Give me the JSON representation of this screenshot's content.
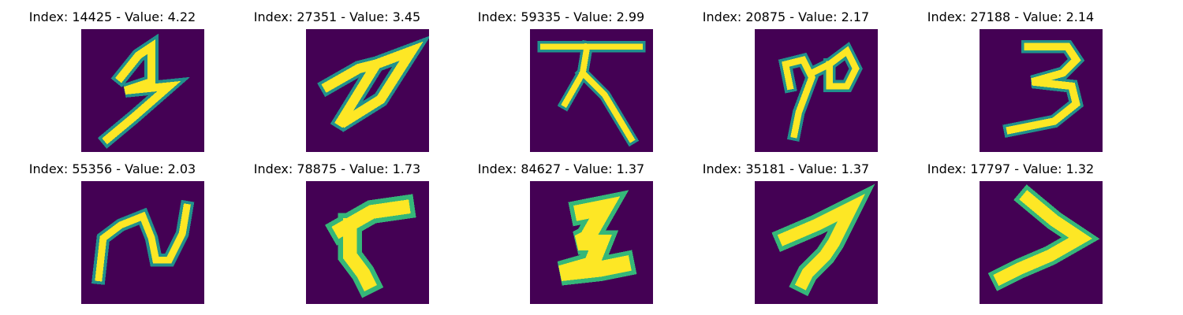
{
  "colors": {
    "background": "#440154",
    "stroke_core": "#fde725",
    "stroke_mid": "#21918c",
    "stroke_edge": "#35b779"
  },
  "panels": [
    {
      "title": "Index: 14425 - Value: 4.22"
    },
    {
      "title": "Index: 27351 - Value: 3.45"
    },
    {
      "title": "Index: 59335 - Value: 2.99"
    },
    {
      "title": "Index: 20875 - Value: 2.17"
    },
    {
      "title": "Index: 27188 - Value: 2.14"
    },
    {
      "title": "Index: 55356 - Value: 2.03"
    },
    {
      "title": "Index: 78875 - Value: 1.73"
    },
    {
      "title": "Index: 84627 - Value: 1.37"
    },
    {
      "title": "Index: 35181 - Value: 1.37"
    },
    {
      "title": "Index: 17797 - Value: 1.32"
    }
  ]
}
